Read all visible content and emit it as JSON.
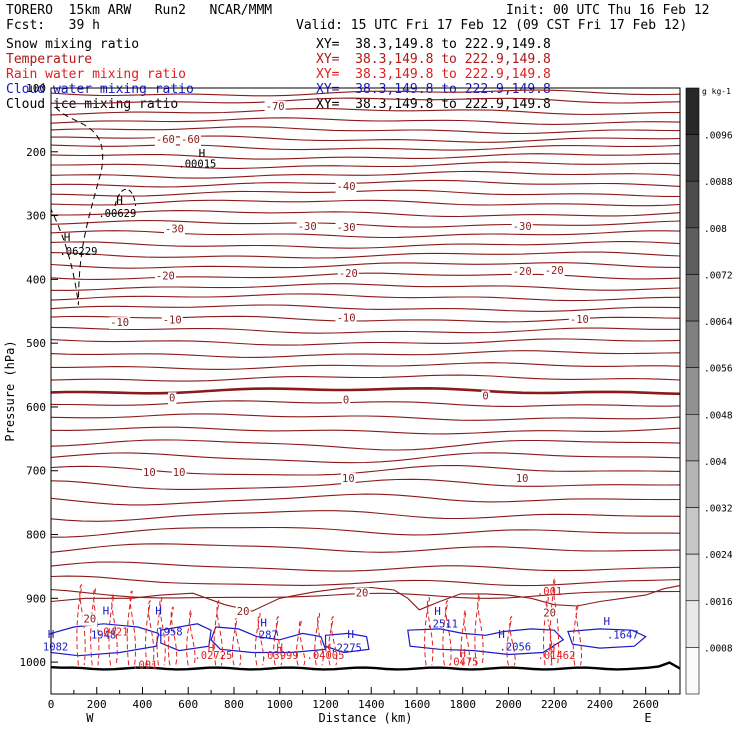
{
  "header": {
    "model": "TORERO  15km ARW   Run2   NCAR/MMM",
    "init": "Init: 00 UTC Thu 16 Feb 12",
    "fcst": "Fcst:   39 h",
    "valid": "Valid: 15 UTC Fri 17 Feb 12 (09 CST Fri 17 Feb 12)"
  },
  "fields": [
    {
      "name": "Snow mixing ratio",
      "xy": "XY=  38.3,149.8 to 222.9,149.8",
      "color": "#000000"
    },
    {
      "name": "Temperature",
      "xy": "XY=  38.3,149.8 to 222.9,149.8",
      "color": "#b01818"
    },
    {
      "name": "Rain water mixing ratio",
      "xy": "XY=  38.3,149.8 to 222.9,149.8",
      "color": "#e02020"
    },
    {
      "name": "Cloud water mixing ratio",
      "xy": "XY=  38.3,149.8 to 222.9,149.8",
      "color": "#1a1ac8"
    },
    {
      "name": "Cloud ice mixing ratio",
      "xy": "XY=  38.3,149.8 to 222.9,149.8",
      "color": "#000000"
    }
  ],
  "chart_data": {
    "type": "line",
    "title": "",
    "xlabel": "Distance (km)",
    "ylabel": "Pressure (hPa)",
    "xlim": [
      0,
      2750
    ],
    "ylim": [
      1050,
      100
    ],
    "x_ticks": [
      0,
      200,
      400,
      600,
      800,
      1000,
      1200,
      1400,
      1600,
      1800,
      2000,
      2200,
      2400,
      2600
    ],
    "y_ticks": [
      100,
      200,
      300,
      400,
      500,
      600,
      700,
      800,
      900,
      1000
    ],
    "x_end_labels": {
      "left": "W",
      "right": "E"
    },
    "temperature_isotherms": [
      {
        "value": -70,
        "pressure": 125
      },
      {
        "value": -60,
        "pressure": 190
      },
      {
        "value": -40,
        "pressure": 255
      },
      {
        "value": -30,
        "pressure": 320
      },
      {
        "value": -20,
        "pressure": 390
      },
      {
        "value": -10,
        "pressure": 462
      },
      {
        "value": 0,
        "pressure": 575
      },
      {
        "value": 10,
        "pressure": 700
      },
      {
        "value": 20,
        "pressure": 895
      }
    ],
    "isotherm_labels": [
      {
        "text": "-70",
        "x": 980,
        "p": 128
      },
      {
        "text": "-60",
        "x": 500,
        "p": 180
      },
      {
        "text": "-60",
        "x": 610,
        "p": 180
      },
      {
        "text": "-40",
        "x": 1290,
        "p": 254
      },
      {
        "text": "-30",
        "x": 540,
        "p": 320
      },
      {
        "text": "-30",
        "x": 1120,
        "p": 316
      },
      {
        "text": "-30",
        "x": 1290,
        "p": 318
      },
      {
        "text": "-30",
        "x": 2060,
        "p": 316
      },
      {
        "text": "-20",
        "x": 500,
        "p": 394
      },
      {
        "text": "-20",
        "x": 1300,
        "p": 390
      },
      {
        "text": "-20",
        "x": 2060,
        "p": 387
      },
      {
        "text": "-20",
        "x": 2200,
        "p": 385
      },
      {
        "text": "-10",
        "x": 300,
        "p": 467
      },
      {
        "text": "-10",
        "x": 530,
        "p": 463
      },
      {
        "text": "-10",
        "x": 1290,
        "p": 460
      },
      {
        "text": "-10",
        "x": 2310,
        "p": 462
      },
      {
        "text": "0",
        "x": 530,
        "p": 585
      },
      {
        "text": "0",
        "x": 1290,
        "p": 588
      },
      {
        "text": "0",
        "x": 1900,
        "p": 582
      },
      {
        "text": "10",
        "x": 430,
        "p": 702
      },
      {
        "text": "10",
        "x": 560,
        "p": 702
      },
      {
        "text": "10",
        "x": 1300,
        "p": 711
      },
      {
        "text": "10",
        "x": 2060,
        "p": 711
      },
      {
        "text": "20",
        "x": 1360,
        "p": 891
      },
      {
        "text": "20",
        "x": 840,
        "p": 920
      },
      {
        "text": "20",
        "x": 170,
        "p": 932
      },
      {
        "text": "20",
        "x": 2180,
        "p": 922
      }
    ],
    "maxima_labels": [
      {
        "text": ".00015",
        "x": 640,
        "p": 225,
        "color": "#000000"
      },
      {
        "text": ".00629",
        "x": 290,
        "p": 302,
        "color": "#000000"
      },
      {
        "text": ".06229",
        "x": 120,
        "p": 362,
        "color": "#000000"
      },
      {
        "text": "1082",
        "x": 20,
        "p": 982,
        "color": "#1a1ac8"
      },
      {
        "text": "1948",
        "x": 230,
        "p": 963,
        "color": "#1a1ac8"
      },
      {
        "text": ".0421",
        "x": 270,
        "p": 958,
        "color": "#e02020"
      },
      {
        "text": "1958",
        "x": 520,
        "p": 958,
        "color": "#1a1ac8"
      },
      {
        "text": ".02725",
        "x": 710,
        "p": 995,
        "color": "#e02020"
      },
      {
        "text": "287",
        "x": 950,
        "p": 963,
        "color": "#1a1ac8"
      },
      {
        "text": ".03999",
        "x": 1000,
        "p": 995,
        "color": "#e02020"
      },
      {
        "text": ".04005",
        "x": 1200,
        "p": 995,
        "color": "#e02020"
      },
      {
        "text": ".2275",
        "x": 1290,
        "p": 983,
        "color": "#1a1ac8"
      },
      {
        "text": ".2511",
        "x": 1710,
        "p": 946,
        "color": "#1a1ac8"
      },
      {
        "text": ".0475",
        "x": 1800,
        "p": 1005,
        "color": "#e02020"
      },
      {
        "text": ".2056",
        "x": 2030,
        "p": 982,
        "color": "#1a1ac8"
      },
      {
        "text": ".01462",
        "x": 2210,
        "p": 995,
        "color": "#e02020"
      },
      {
        "text": ".001",
        "x": 2180,
        "p": 895,
        "color": "#e02020"
      },
      {
        "text": ".1647",
        "x": 2500,
        "p": 963,
        "color": "#1a1ac8"
      },
      {
        "text": ".001",
        "x": 410,
        "p": 1010,
        "color": "#e02020"
      }
    ],
    "H_markers": [
      {
        "x": 660,
        "p": 208,
        "color": "#000000"
      },
      {
        "x": 300,
        "p": 282,
        "color": "#000000"
      },
      {
        "x": 70,
        "p": 340,
        "color": "#000000"
      },
      {
        "x": 240,
        "p": 925,
        "color": "#1a1ac8"
      },
      {
        "x": 470,
        "p": 925,
        "color": "#1a1ac8"
      },
      {
        "x": 0,
        "p": 962,
        "color": "#1a1ac8"
      },
      {
        "x": 930,
        "p": 944,
        "color": "#1a1ac8"
      },
      {
        "x": 1310,
        "p": 962,
        "color": "#1a1ac8"
      },
      {
        "x": 1690,
        "p": 926,
        "color": "#1a1ac8"
      },
      {
        "x": 1970,
        "p": 962,
        "color": "#1a1ac8"
      },
      {
        "x": 2430,
        "p": 942,
        "color": "#1a1ac8"
      },
      {
        "x": 700,
        "p": 983,
        "color": "#e02020"
      },
      {
        "x": 1000,
        "p": 983,
        "color": "#e02020"
      },
      {
        "x": 1210,
        "p": 983,
        "color": "#e02020"
      },
      {
        "x": 1800,
        "p": 992,
        "color": "#e02020"
      },
      {
        "x": 2190,
        "p": 983,
        "color": "#e02020"
      }
    ],
    "colorbar": {
      "units": "g kg-1",
      "labels": [
        ".0096",
        ".0088",
        ".008",
        ".0072",
        ".0064",
        ".0056",
        ".0048",
        ".004",
        ".0032",
        ".0024",
        ".0016",
        ".0008"
      ]
    }
  }
}
